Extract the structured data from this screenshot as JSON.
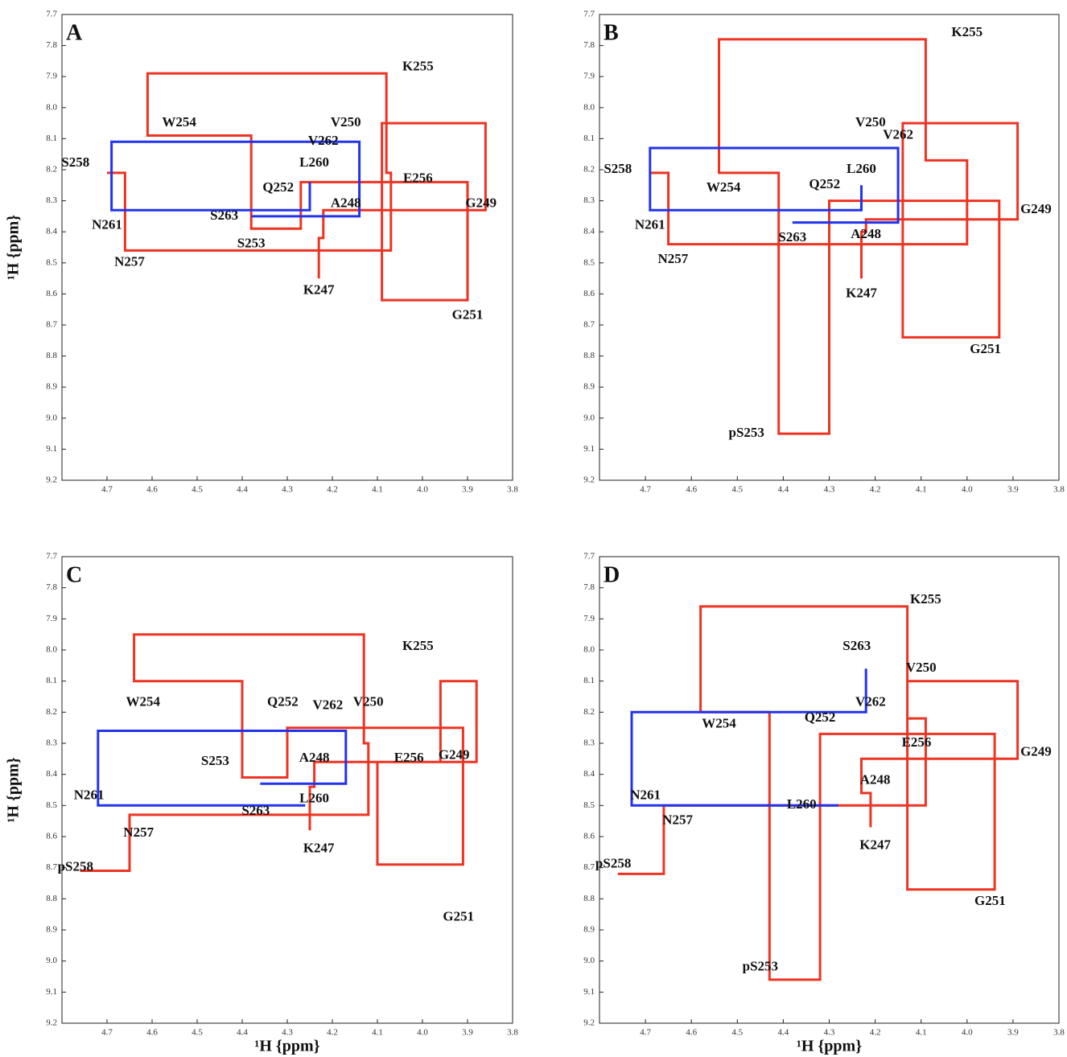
{
  "chart_data": [
    {
      "type": "line",
      "title": "A",
      "y_label": "¹H {ppm}",
      "xlim": [
        4.8,
        3.8
      ],
      "ylim": [
        7.7,
        9.2
      ],
      "xticks": [
        4.7,
        4.6,
        4.5,
        4.4,
        4.3,
        4.2,
        4.1,
        {
          "value": 4,
          "label": "4.0"
        },
        3.9,
        3.8
      ],
      "yticks": [
        7.7,
        7.8,
        7.9,
        {
          "value": 8,
          "label": "8.0"
        },
        8.1,
        8.2,
        8.3,
        8.4,
        8.5,
        8.6,
        8.7,
        8.8,
        8.9,
        {
          "value": 9,
          "label": "9.0"
        },
        9.1,
        9.2
      ],
      "series": [
        {
          "color": "#ee3322",
          "x": [
            4.7,
            4.66,
            4.66,
            4.07,
            4.07,
            4.08,
            4.08,
            4.61,
            4.61,
            4.38,
            4.38,
            4.27,
            4.27,
            3.9,
            3.9,
            4.09,
            4.09,
            3.86,
            3.86,
            4.22,
            4.22,
            4.23,
            4.23
          ],
          "values": [
            8.21,
            8.21,
            8.46,
            8.46,
            8.21,
            8.21,
            7.89,
            7.89,
            8.09,
            8.09,
            8.39,
            8.39,
            8.24,
            8.24,
            8.62,
            8.62,
            8.05,
            8.05,
            8.33,
            8.33,
            8.42,
            8.42,
            8.55
          ]
        },
        {
          "color": "#2233ee",
          "x": [
            4.25,
            4.25,
            4.69,
            4.69,
            4.14,
            4.14,
            4.38
          ],
          "values": [
            8.24,
            8.33,
            8.33,
            8.11,
            8.11,
            8.35,
            8.35
          ]
        }
      ],
      "annotations": [
        {
          "text": "K255",
          "x": 4.01,
          "y": 7.87
        },
        {
          "text": "W254",
          "x": 4.54,
          "y": 8.05
        },
        {
          "text": "V250",
          "x": 4.17,
          "y": 8.05
        },
        {
          "text": "V262",
          "x": 4.22,
          "y": 8.11
        },
        {
          "text": "S258",
          "x": 4.77,
          "y": 8.18
        },
        {
          "text": "L260",
          "x": 4.24,
          "y": 8.18
        },
        {
          "text": "E256",
          "x": 4.01,
          "y": 8.23
        },
        {
          "text": "Q252",
          "x": 4.32,
          "y": 8.26
        },
        {
          "text": "A248",
          "x": 4.17,
          "y": 8.31
        },
        {
          "text": "G249",
          "x": 3.87,
          "y": 8.31
        },
        {
          "text": "S263",
          "x": 4.44,
          "y": 8.35
        },
        {
          "text": "N261",
          "x": 4.7,
          "y": 8.38
        },
        {
          "text": "S253",
          "x": 4.38,
          "y": 8.44
        },
        {
          "text": "N257",
          "x": 4.65,
          "y": 8.5
        },
        {
          "text": "K247",
          "x": 4.23,
          "y": 8.59
        },
        {
          "text": "G251",
          "x": 3.9,
          "y": 8.67
        }
      ]
    },
    {
      "type": "line",
      "title": "B",
      "xlim": [
        4.8,
        3.8
      ],
      "ylim": [
        7.7,
        9.2
      ],
      "xticks": [
        4.7,
        4.6,
        4.5,
        4.4,
        4.3,
        4.2,
        4.1,
        {
          "value": 4,
          "label": "4.0"
        },
        3.9,
        3.8
      ],
      "yticks": [
        7.7,
        7.8,
        7.9,
        {
          "value": 8,
          "label": "8.0"
        },
        8.1,
        8.2,
        8.3,
        8.4,
        8.5,
        8.6,
        8.7,
        8.8,
        8.9,
        {
          "value": 9,
          "label": "9.0"
        },
        9.1,
        9.2
      ],
      "series": [
        {
          "color": "#ee3322",
          "x": [
            4.69,
            4.65,
            4.65,
            4.0,
            4.0,
            4.09,
            4.09,
            4.54,
            4.54,
            4.41,
            4.41,
            4.3,
            4.3,
            3.93,
            3.93,
            4.14,
            4.14,
            3.89,
            3.89,
            4.22,
            4.22,
            4.23,
            4.23
          ],
          "values": [
            8.21,
            8.21,
            8.44,
            8.44,
            8.17,
            8.17,
            7.78,
            7.78,
            8.21,
            8.21,
            9.05,
            9.05,
            8.3,
            8.3,
            8.74,
            8.74,
            8.05,
            8.05,
            8.36,
            8.36,
            8.4,
            8.4,
            8.55
          ]
        },
        {
          "color": "#2233ee",
          "x": [
            4.23,
            4.23,
            4.69,
            4.69,
            4.15,
            4.15,
            4.38
          ],
          "values": [
            8.25,
            8.33,
            8.33,
            8.13,
            8.13,
            8.37,
            8.37
          ]
        }
      ],
      "annotations": [
        {
          "text": "K255",
          "x": 4.0,
          "y": 7.76
        },
        {
          "text": "V250",
          "x": 4.21,
          "y": 8.05
        },
        {
          "text": "V262",
          "x": 4.15,
          "y": 8.09
        },
        {
          "text": "S258",
          "x": 4.76,
          "y": 8.2
        },
        {
          "text": "L260",
          "x": 4.23,
          "y": 8.2
        },
        {
          "text": "W254",
          "x": 4.53,
          "y": 8.26
        },
        {
          "text": "Q252",
          "x": 4.31,
          "y": 8.25
        },
        {
          "text": "G249",
          "x": 3.85,
          "y": 8.33
        },
        {
          "text": "N261",
          "x": 4.69,
          "y": 8.38
        },
        {
          "text": "S263",
          "x": 4.38,
          "y": 8.42
        },
        {
          "text": "A248",
          "x": 4.22,
          "y": 8.41
        },
        {
          "text": "N257",
          "x": 4.64,
          "y": 8.49
        },
        {
          "text": "K247",
          "x": 4.23,
          "y": 8.6
        },
        {
          "text": "G251",
          "x": 3.96,
          "y": 8.78
        },
        {
          "text": "pS253",
          "x": 4.48,
          "y": 9.05
        }
      ]
    },
    {
      "type": "line",
      "title": "C",
      "x_label": "¹H {ppm}",
      "y_label": "¹H {ppm}",
      "xlim": [
        4.8,
        3.8
      ],
      "ylim": [
        7.7,
        9.2
      ],
      "xticks": [
        4.7,
        4.6,
        4.5,
        4.4,
        4.3,
        4.2,
        4.1,
        {
          "value": 4,
          "label": "4.0"
        },
        3.9,
        3.8
      ],
      "yticks": [
        7.7,
        7.8,
        7.9,
        {
          "value": 8,
          "label": "8.0"
        },
        8.1,
        8.2,
        8.3,
        8.4,
        8.5,
        8.6,
        8.7,
        8.8,
        8.9,
        {
          "value": 9,
          "label": "9.0"
        },
        9.1,
        9.2
      ],
      "series": [
        {
          "color": "#ee3322",
          "x": [
            4.76,
            4.65,
            4.65,
            4.12,
            4.12,
            4.13,
            4.13,
            4.64,
            4.64,
            4.4,
            4.4,
            4.3,
            4.3,
            3.91,
            3.91,
            4.1,
            4.1,
            3.96,
            3.96,
            3.88,
            3.88,
            4.24,
            4.24,
            4.25,
            4.25
          ],
          "values": [
            8.71,
            8.71,
            8.53,
            8.53,
            8.3,
            8.3,
            7.95,
            7.95,
            8.1,
            8.1,
            8.41,
            8.41,
            8.25,
            8.25,
            8.69,
            8.69,
            8.36,
            8.36,
            8.1,
            8.1,
            8.36,
            8.36,
            8.44,
            8.44,
            8.58
          ]
        },
        {
          "color": "#2233ee",
          "x": [
            4.26,
            4.72,
            4.72,
            4.17,
            4.17,
            4.36
          ],
          "values": [
            8.5,
            8.5,
            8.26,
            8.26,
            8.43,
            8.43
          ]
        }
      ],
      "annotations": [
        {
          "text": "K255",
          "x": 4.01,
          "y": 7.99
        },
        {
          "text": "W254",
          "x": 4.62,
          "y": 8.17
        },
        {
          "text": "Q252",
          "x": 4.31,
          "y": 8.17
        },
        {
          "text": "V262",
          "x": 4.21,
          "y": 8.18
        },
        {
          "text": "V250",
          "x": 4.12,
          "y": 8.17
        },
        {
          "text": "A248",
          "x": 4.24,
          "y": 8.35
        },
        {
          "text": "S253",
          "x": 4.46,
          "y": 8.36
        },
        {
          "text": "E256",
          "x": 4.03,
          "y": 8.35
        },
        {
          "text": "G249",
          "x": 3.93,
          "y": 8.34
        },
        {
          "text": "N261",
          "x": 4.74,
          "y": 8.47
        },
        {
          "text": "L260",
          "x": 4.24,
          "y": 8.48
        },
        {
          "text": "S263",
          "x": 4.37,
          "y": 8.52
        },
        {
          "text": "N257",
          "x": 4.63,
          "y": 8.59
        },
        {
          "text": "pS258",
          "x": 4.77,
          "y": 8.7
        },
        {
          "text": "K247",
          "x": 4.23,
          "y": 8.64
        },
        {
          "text": "G251",
          "x": 3.92,
          "y": 8.86
        }
      ]
    },
    {
      "type": "line",
      "title": "D",
      "x_label": "¹H {ppm}",
      "xlim": [
        4.8,
        3.8
      ],
      "ylim": [
        7.7,
        9.2
      ],
      "xticks": [
        4.7,
        4.6,
        4.5,
        4.4,
        4.3,
        4.2,
        4.1,
        {
          "value": 4,
          "label": "4.0"
        },
        3.9,
        3.8
      ],
      "yticks": [
        7.7,
        7.8,
        7.9,
        {
          "value": 8,
          "label": "8.0"
        },
        8.1,
        8.2,
        8.3,
        8.4,
        8.5,
        8.6,
        8.7,
        8.8,
        8.9,
        {
          "value": 9,
          "label": "9.0"
        },
        9.1,
        9.2
      ],
      "series": [
        {
          "color": "#ee3322",
          "x": [
            4.76,
            4.66,
            4.66,
            4.09,
            4.09,
            4.13,
            4.13,
            4.58,
            4.58,
            4.43,
            4.43,
            4.32,
            4.32,
            3.94,
            3.94,
            4.13,
            4.13,
            3.89,
            3.89,
            4.23,
            4.23,
            4.21,
            4.21
          ],
          "values": [
            8.72,
            8.72,
            8.5,
            8.5,
            8.22,
            8.22,
            7.86,
            7.86,
            8.2,
            8.2,
            9.06,
            9.06,
            8.27,
            8.27,
            8.77,
            8.77,
            8.1,
            8.1,
            8.35,
            8.35,
            8.46,
            8.46,
            8.57
          ]
        },
        {
          "color": "#2233ee",
          "x": [
            4.28,
            4.73,
            4.73,
            4.22,
            4.22
          ],
          "values": [
            8.5,
            8.5,
            8.2,
            8.2,
            8.06
          ]
        }
      ],
      "annotations": [
        {
          "text": "K255",
          "x": 4.09,
          "y": 7.84
        },
        {
          "text": "S263",
          "x": 4.24,
          "y": 7.99
        },
        {
          "text": "V250",
          "x": 4.1,
          "y": 8.06
        },
        {
          "text": "V262",
          "x": 4.21,
          "y": 8.17
        },
        {
          "text": "W254",
          "x": 4.54,
          "y": 8.24
        },
        {
          "text": "Q252",
          "x": 4.32,
          "y": 8.22
        },
        {
          "text": "E256",
          "x": 4.11,
          "y": 8.3
        },
        {
          "text": "G249",
          "x": 3.85,
          "y": 8.33
        },
        {
          "text": "A248",
          "x": 4.2,
          "y": 8.42
        },
        {
          "text": "N261",
          "x": 4.7,
          "y": 8.47
        },
        {
          "text": "L260",
          "x": 4.36,
          "y": 8.5
        },
        {
          "text": "N257",
          "x": 4.63,
          "y": 8.55
        },
        {
          "text": "K247",
          "x": 4.2,
          "y": 8.63
        },
        {
          "text": "pS258",
          "x": 4.77,
          "y": 8.69
        },
        {
          "text": "G251",
          "x": 3.95,
          "y": 8.81
        },
        {
          "text": "pS253",
          "x": 4.45,
          "y": 9.02
        }
      ]
    }
  ]
}
